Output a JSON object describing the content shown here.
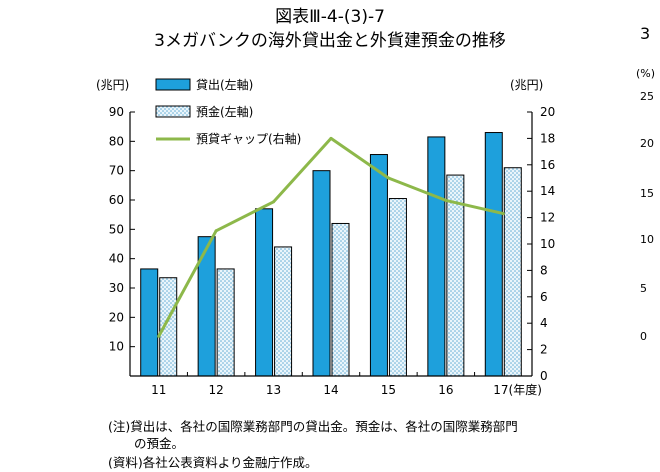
{
  "figure": {
    "title_line1": "図表Ⅲ-4-(3)-7",
    "title_line2": "3メガバンクの海外貸出金と外貨建預金の推移",
    "note_line1": "(注)貸出は、各社の国際業務部門の貸出金。預金は、各社の国際業務部門",
    "note_line2": "の預金。",
    "source": "(資料)各社公表資料より金融庁作成。"
  },
  "right_edge": {
    "title_fragment": "3",
    "unit": "(%)",
    "ticks": [
      "25",
      "20",
      "15",
      "10",
      "5",
      "0"
    ]
  },
  "chart_data": {
    "type": "bar",
    "categories": [
      "11",
      "12",
      "13",
      "14",
      "15",
      "16",
      "17"
    ],
    "x_suffix": "(年度)",
    "y_left": {
      "unit": "(兆円)",
      "ylim": [
        0,
        90
      ],
      "ticks": [
        10,
        20,
        30,
        40,
        50,
        60,
        70,
        80,
        90
      ]
    },
    "y_right": {
      "unit": "(兆円)",
      "ylim": [
        0,
        20
      ],
      "ticks": [
        0,
        2,
        4,
        6,
        8,
        10,
        12,
        14,
        16,
        18,
        20
      ]
    },
    "series": [
      {
        "name": "貸出(左軸)",
        "kind": "bar",
        "axis": "left",
        "color": "#1ea0dc",
        "values": [
          36.5,
          47.5,
          57,
          70,
          75.5,
          81.5,
          83
        ]
      },
      {
        "name": "預金(左軸)",
        "kind": "bar",
        "axis": "left",
        "pattern": "dotted",
        "color": "#d9eef8",
        "values": [
          33.5,
          36.5,
          44,
          52,
          60.5,
          68.5,
          71
        ]
      },
      {
        "name": "預貸ギャップ(右軸)",
        "kind": "line",
        "axis": "right",
        "color": "#8db84a",
        "values": [
          3,
          11,
          13.2,
          18,
          15,
          13.3,
          12.3
        ]
      }
    ],
    "grid": false,
    "legend_position": "top-left"
  }
}
